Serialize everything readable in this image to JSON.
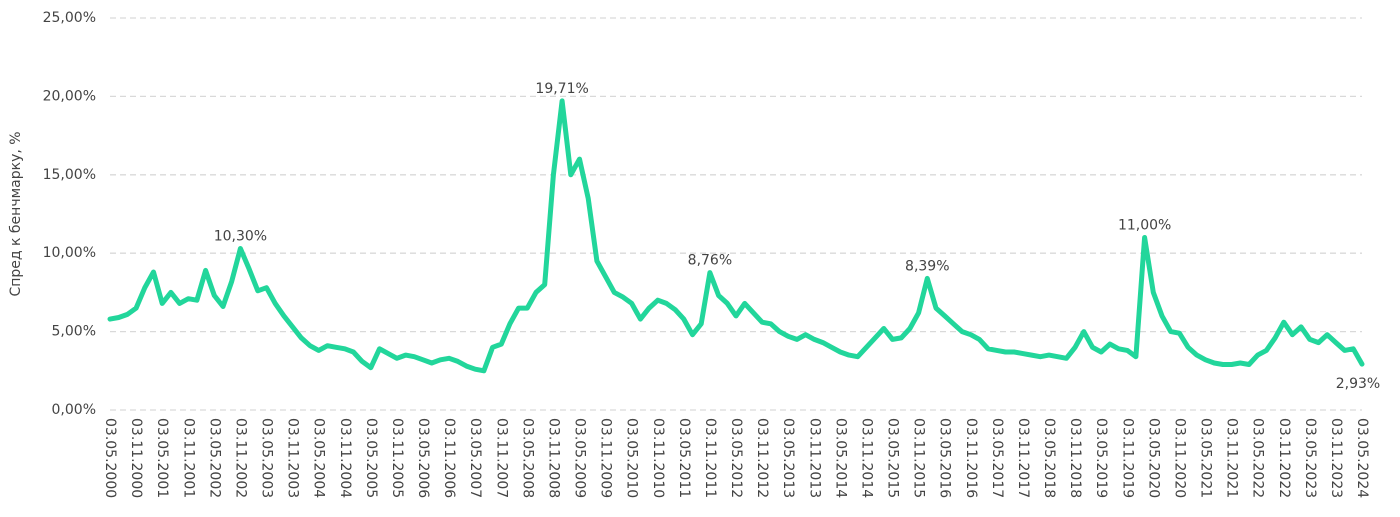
{
  "chart_data": {
    "type": "line",
    "y_label": "Спред к бенчмарку, %",
    "categories": [
      "03.05.2000",
      null,
      null,
      "03.11.2000",
      null,
      null,
      "03.05.2001",
      null,
      null,
      "03.11.2001",
      null,
      null,
      "03.05.2002",
      null,
      null,
      "03.11.2002",
      null,
      null,
      "03.05.2003",
      null,
      null,
      "03.11.2003",
      null,
      null,
      "03.05.2004",
      null,
      null,
      "03.11.2004",
      null,
      null,
      "03.05.2005",
      null,
      null,
      "03.11.2005",
      null,
      null,
      "03.05.2006",
      null,
      null,
      "03.11.2006",
      null,
      null,
      "03.05.2007",
      null,
      null,
      "03.11.2007",
      null,
      null,
      "03.05.2008",
      null,
      null,
      "03.11.2008",
      null,
      null,
      "03.05.2009",
      null,
      null,
      "03.11.2009",
      null,
      null,
      "03.05.2010",
      null,
      null,
      "03.11.2010",
      null,
      null,
      "03.05.2011",
      null,
      null,
      "03.11.2011",
      null,
      null,
      "03.05.2012",
      null,
      null,
      "03.11.2012",
      null,
      null,
      "03.05.2013",
      null,
      null,
      "03.11.2013",
      null,
      null,
      "03.05.2014",
      null,
      null,
      "03.11.2014",
      null,
      null,
      "03.05.2015",
      null,
      null,
      "03.11.2015",
      null,
      null,
      "03.05.2016",
      null,
      null,
      "03.11.2016",
      null,
      null,
      "03.05.2017",
      null,
      null,
      "03.11.2017",
      null,
      null,
      "03.05.2018",
      null,
      null,
      "03.11.2018",
      null,
      null,
      "03.05.2019",
      null,
      null,
      "03.11.2019",
      null,
      null,
      "03.05.2020",
      null,
      null,
      "03.11.2020",
      null,
      null,
      "03.05.2021",
      null,
      null,
      "03.11.2021",
      null,
      null,
      "03.05.2022",
      null,
      null,
      "03.11.2022",
      null,
      null,
      "03.05.2023",
      null,
      null,
      "03.11.2023",
      null,
      null,
      "03.05.2024"
    ],
    "series": [
      {
        "name": "Спред",
        "color": "#22d69b",
        "values": [
          5.8,
          5.9,
          6.1,
          6.5,
          7.8,
          8.8,
          6.8,
          7.5,
          6.8,
          7.1,
          7.0,
          8.9,
          7.3,
          6.6,
          8.2,
          10.3,
          9.0,
          7.6,
          7.8,
          6.8,
          6.0,
          5.3,
          4.6,
          4.1,
          3.8,
          4.1,
          4.0,
          3.9,
          3.7,
          3.1,
          2.7,
          3.9,
          3.6,
          3.3,
          3.5,
          3.4,
          3.2,
          3.0,
          3.2,
          3.3,
          3.1,
          2.8,
          2.6,
          2.5,
          4.0,
          4.2,
          5.5,
          6.5,
          6.5,
          7.5,
          8.0,
          15.0,
          19.71,
          15.0,
          16.0,
          13.5,
          9.5,
          8.5,
          7.5,
          7.2,
          6.8,
          5.8,
          6.5,
          7.0,
          6.8,
          6.4,
          5.8,
          4.8,
          5.5,
          8.76,
          7.3,
          6.8,
          6.0,
          6.8,
          6.2,
          5.6,
          5.5,
          5.0,
          4.7,
          4.5,
          4.8,
          4.5,
          4.3,
          4.0,
          3.7,
          3.5,
          3.4,
          4.0,
          4.6,
          5.2,
          4.5,
          4.6,
          5.2,
          6.2,
          8.39,
          6.5,
          6.0,
          5.5,
          5.0,
          4.8,
          4.5,
          3.9,
          3.8,
          3.7,
          3.7,
          3.6,
          3.5,
          3.4,
          3.5,
          3.4,
          3.3,
          4.0,
          5.0,
          4.0,
          3.7,
          4.2,
          3.9,
          3.8,
          3.4,
          11.0,
          7.5,
          6.0,
          5.0,
          4.9,
          4.0,
          3.5,
          3.2,
          3.0,
          2.9,
          2.9,
          3.0,
          2.9,
          3.5,
          3.8,
          4.6,
          5.6,
          4.8,
          5.3,
          4.5,
          4.3,
          4.8,
          4.3,
          3.8,
          3.9,
          2.93
        ],
        "value_labels": [
          null,
          null,
          null,
          null,
          null,
          null,
          null,
          null,
          null,
          null,
          null,
          null,
          null,
          null,
          null,
          "10,30%",
          null,
          null,
          null,
          null,
          null,
          null,
          null,
          null,
          null,
          null,
          null,
          null,
          null,
          null,
          null,
          null,
          null,
          null,
          null,
          null,
          null,
          null,
          null,
          null,
          null,
          null,
          null,
          null,
          null,
          null,
          null,
          null,
          null,
          null,
          null,
          null,
          "19,71%",
          null,
          null,
          null,
          null,
          null,
          null,
          null,
          null,
          null,
          null,
          null,
          null,
          null,
          null,
          null,
          null,
          "8,76%",
          null,
          null,
          null,
          null,
          null,
          null,
          null,
          null,
          null,
          null,
          null,
          null,
          null,
          null,
          null,
          null,
          null,
          null,
          null,
          null,
          null,
          null,
          null,
          null,
          "8,39%",
          null,
          null,
          null,
          null,
          null,
          null,
          null,
          null,
          null,
          null,
          null,
          null,
          null,
          null,
          null,
          null,
          null,
          null,
          null,
          null,
          null,
          null,
          null,
          null,
          "11,00%",
          null,
          null,
          null,
          null,
          null,
          null,
          null,
          null,
          null,
          null,
          null,
          null,
          null,
          null,
          null,
          null,
          null,
          null,
          null,
          null,
          null,
          null,
          null,
          null,
          "2,93%"
        ]
      }
    ],
    "ylim": [
      0,
      25
    ],
    "yticks": [
      {
        "value": 0,
        "label": "0,00%"
      },
      {
        "value": 5,
        "label": "5,00%"
      },
      {
        "value": 10,
        "label": "10,00%"
      },
      {
        "value": 15,
        "label": "15,00%"
      },
      {
        "value": 20,
        "label": "20,00%"
      },
      {
        "value": 25,
        "label": "25,00%"
      }
    ],
    "grid": true
  }
}
